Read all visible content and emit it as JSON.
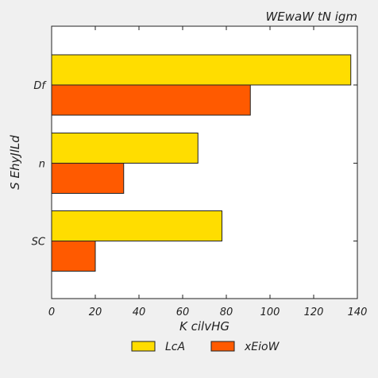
{
  "chart_data": {
    "type": "bar",
    "orientation": "horizontal",
    "title": "WEwaW tN igm",
    "xlabel": "K  cilvHG",
    "ylabel": "S EhyJlLd",
    "categories": [
      "Df",
      "n",
      "SC"
    ],
    "series": [
      {
        "name": "LcA",
        "color": "#ffdd00",
        "values": [
          137,
          67,
          78
        ]
      },
      {
        "name": "xEioW",
        "color": "#ff5a00",
        "values": [
          91,
          33,
          20
        ]
      }
    ],
    "xlim": [
      0,
      140
    ],
    "xticks": [
      0,
      20,
      40,
      60,
      80,
      100,
      120,
      140
    ],
    "grid": false,
    "legend_position": "bottom"
  }
}
